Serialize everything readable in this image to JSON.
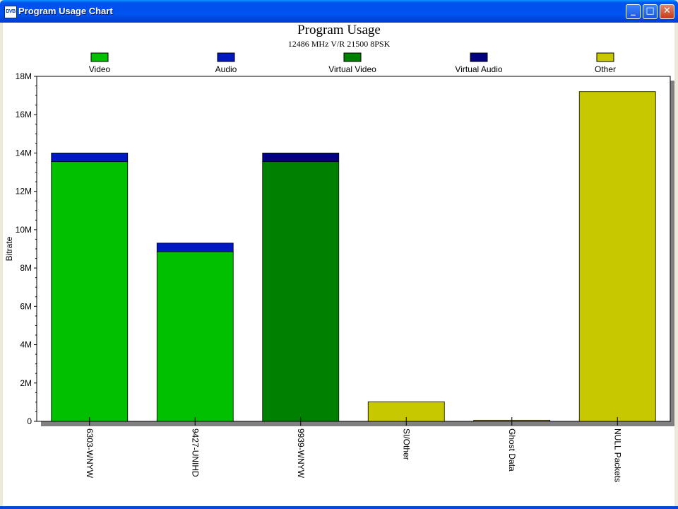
{
  "window": {
    "title": "Program Usage Chart",
    "icon": "dvb-app-icon",
    "minimize_label": "_",
    "maximize_label": "□",
    "close_label": "✕"
  },
  "colors": {
    "titlebar": "#0054e3",
    "video": "#00c000",
    "audio": "#0018c0",
    "virtual_video": "#008000",
    "virtual_audio": "#000080",
    "other": "#c8c800"
  },
  "chart_data": {
    "type": "bar",
    "stacked": true,
    "title": "Program Usage",
    "subtitle": "12486 MHz V/R 21500 8PSK",
    "xlabel": "",
    "ylabel": "Bitrate",
    "ylim": [
      0,
      18000000
    ],
    "yticks": [
      {
        "value": 0,
        "label": "0"
      },
      {
        "value": 2000000,
        "label": "2M"
      },
      {
        "value": 4000000,
        "label": "4M"
      },
      {
        "value": 6000000,
        "label": "6M"
      },
      {
        "value": 8000000,
        "label": "8M"
      },
      {
        "value": 10000000,
        "label": "10M"
      },
      {
        "value": 12000000,
        "label": "12M"
      },
      {
        "value": 14000000,
        "label": "14M"
      },
      {
        "value": 16000000,
        "label": "16M"
      },
      {
        "value": 18000000,
        "label": "18M"
      }
    ],
    "legend_position": "top",
    "grid": false,
    "categories": [
      "6303-WNYW",
      "9427-UNIHD",
      "9939-WNYW",
      "SI/Other",
      "Ghost Data",
      "NULL Packets"
    ],
    "series": [
      {
        "name": "Video",
        "color": "#00c000",
        "values": [
          13550000,
          8850000,
          0,
          0,
          0,
          0
        ]
      },
      {
        "name": "Audio",
        "color": "#0018c0",
        "values": [
          450000,
          450000,
          0,
          0,
          0,
          0
        ]
      },
      {
        "name": "Virtual Video",
        "color": "#008000",
        "values": [
          0,
          0,
          13550000,
          0,
          0,
          0
        ]
      },
      {
        "name": "Virtual Audio",
        "color": "#000080",
        "values": [
          0,
          0,
          450000,
          0,
          0,
          0
        ]
      },
      {
        "name": "Other",
        "color": "#c8c800",
        "values": [
          0,
          0,
          0,
          1020000,
          60000,
          17200000
        ]
      }
    ]
  }
}
